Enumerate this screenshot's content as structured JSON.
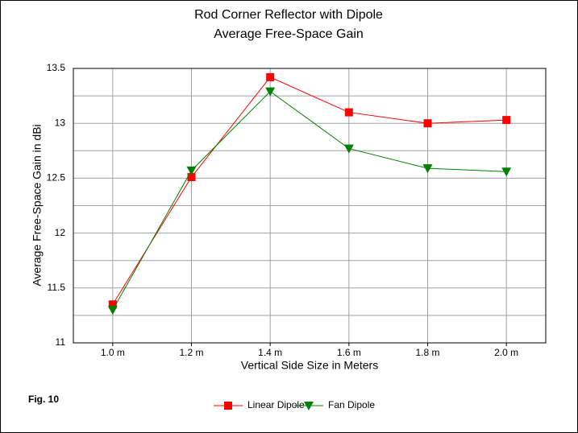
{
  "chart_data": {
    "type": "line",
    "title": [
      "Rod Corner Reflector with Dipole",
      "Average Free-Space Gain"
    ],
    "annotation": "Fig. 10",
    "x_label": "Vertical Side Size in Meters",
    "y_label": "Average Free-Space Gain in dBi",
    "categories": [
      "1.0 m",
      "1.2 m",
      "1.4 m",
      "1.6 m",
      "1.8 m",
      "2.0 m"
    ],
    "series": [
      {
        "name": "Linear Dipole",
        "color": "#ff0000",
        "marker": "square",
        "values": [
          11.35,
          12.51,
          13.42,
          13.1,
          13.0,
          13.03
        ]
      },
      {
        "name": "Fan Dipole",
        "color": "#008000",
        "marker": "triangle-down",
        "values": [
          11.3,
          12.57,
          13.29,
          12.77,
          12.59,
          12.56
        ]
      }
    ],
    "ylim": [
      11,
      13.5
    ],
    "yticks": [
      11,
      11.5,
      12,
      12.5,
      13,
      13.5
    ],
    "yminor_grid": [
      11.25,
      11.75,
      12.25,
      12.75,
      13.25
    ],
    "grid": true,
    "legend": "bottom"
  }
}
